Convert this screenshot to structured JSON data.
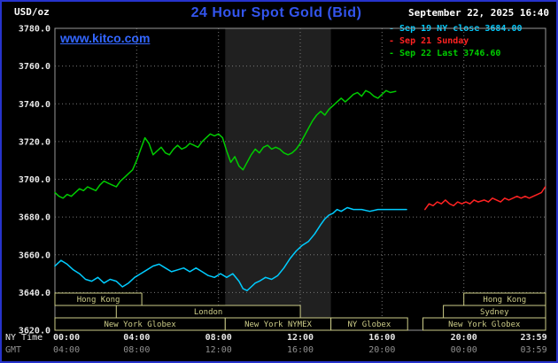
{
  "header": {
    "units": "USD/oz",
    "title": "24 Hour Spot Gold (Bid)",
    "datetime": "September 22, 2025 16:40",
    "site": "www.kitco.com"
  },
  "legend": [
    {
      "label": "- Sep 19 NY close 3684.00",
      "color": "#00ccff"
    },
    {
      "label": "- Sep 21 Sunday",
      "color": "#ff2222"
    },
    {
      "label": "- Sep 22 Last 3746.60",
      "color": "#00cc00"
    }
  ],
  "colors": {
    "border": "#2633cc",
    "grid": "#777777",
    "axis_border": "#999999",
    "band": "#202020",
    "session": "#cccc88",
    "ny_text": "#e8e8e8",
    "gmt_text": "#909090",
    "y_text": "#e8e8e8"
  },
  "axes": {
    "y_ticks": [
      {
        "v": 3780,
        "label": "3780.0"
      },
      {
        "v": 3760,
        "label": "3760.0"
      },
      {
        "v": 3740,
        "label": "3740.0"
      },
      {
        "v": 3720,
        "label": "3720.0"
      },
      {
        "v": 3700,
        "label": "3700.0"
      },
      {
        "v": 3680,
        "label": "3680.0"
      },
      {
        "v": 3660,
        "label": "3660.0"
      },
      {
        "v": 3640,
        "label": "3640.0"
      },
      {
        "v": 3620,
        "label": "3620.0"
      }
    ],
    "x_row_ny_label": "NY Time",
    "x_row_gmt_label": "GMT",
    "x_ticks": [
      {
        "h": 0,
        "ny": "00:00",
        "gmt": "04:00",
        "anchor": "start"
      },
      {
        "h": 4,
        "ny": "04:00",
        "gmt": "08:00",
        "anchor": "middle"
      },
      {
        "h": 8,
        "ny": "08:00",
        "gmt": "12:00",
        "anchor": "middle"
      },
      {
        "h": 12,
        "ny": "12:00",
        "gmt": "16:00",
        "anchor": "middle"
      },
      {
        "h": 16,
        "ny": "16:00",
        "gmt": "20:00",
        "anchor": "middle"
      },
      {
        "h": 20,
        "ny": "20:00",
        "gmt": "00:00",
        "anchor": "middle"
      },
      {
        "h": 23.983,
        "ny": "23:59",
        "gmt": "03:59",
        "anchor": "end"
      }
    ]
  },
  "sessions": [
    [
      {
        "label": "Hong Kong",
        "start": 0,
        "end": 4.25
      },
      {
        "label": "Hong Kong",
        "start": 20,
        "end": 24
      }
    ],
    [
      {
        "label": "London",
        "start": 3,
        "end": 12
      },
      {
        "label": "Sydney",
        "start": 19,
        "end": 24
      }
    ],
    [
      {
        "label": "New York Globex",
        "start": 0,
        "end": 8.33
      },
      {
        "label": "New York NYMEX",
        "start": 8.33,
        "end": 13.5
      },
      {
        "label": "NY Globex",
        "start": 13.5,
        "end": 17.25
      },
      {
        "label": "New York Globex",
        "start": 18,
        "end": 24
      }
    ]
  ],
  "chart_data": {
    "type": "line",
    "title": "24 Hour Spot Gold (Bid)",
    "ylabel": "USD/oz",
    "xlabel": "NY Time (hours 00:00-23:59)",
    "ylim": [
      3620,
      3780
    ],
    "xlim_hours": [
      0,
      24
    ],
    "grid": "dotted",
    "legend_position": "top-right",
    "shaded_band_hours": [
      8.33,
      13.5
    ],
    "series": [
      {
        "name": "Sep 19 NY close 3684.00",
        "color": "#00ccff",
        "points": [
          [
            0,
            3654
          ],
          [
            0.3,
            3657
          ],
          [
            0.6,
            3655
          ],
          [
            0.9,
            3652
          ],
          [
            1.2,
            3650
          ],
          [
            1.5,
            3647
          ],
          [
            1.8,
            3646
          ],
          [
            2.1,
            3648
          ],
          [
            2.4,
            3645
          ],
          [
            2.7,
            3647
          ],
          [
            3.0,
            3646
          ],
          [
            3.3,
            3643
          ],
          [
            3.6,
            3645
          ],
          [
            3.9,
            3648
          ],
          [
            4.2,
            3650
          ],
          [
            4.5,
            3652
          ],
          [
            4.8,
            3654
          ],
          [
            5.1,
            3655
          ],
          [
            5.4,
            3653
          ],
          [
            5.7,
            3651
          ],
          [
            6.0,
            3652
          ],
          [
            6.3,
            3653
          ],
          [
            6.6,
            3651
          ],
          [
            6.9,
            3653
          ],
          [
            7.2,
            3651
          ],
          [
            7.5,
            3649
          ],
          [
            7.8,
            3648
          ],
          [
            8.1,
            3650
          ],
          [
            8.4,
            3648
          ],
          [
            8.7,
            3650
          ],
          [
            9.0,
            3646
          ],
          [
            9.2,
            3642
          ],
          [
            9.4,
            3641
          ],
          [
            9.6,
            3643
          ],
          [
            9.8,
            3645
          ],
          [
            10.0,
            3646
          ],
          [
            10.3,
            3648
          ],
          [
            10.6,
            3647
          ],
          [
            10.9,
            3649
          ],
          [
            11.2,
            3653
          ],
          [
            11.5,
            3658
          ],
          [
            11.8,
            3662
          ],
          [
            12.1,
            3665
          ],
          [
            12.4,
            3667
          ],
          [
            12.7,
            3671
          ],
          [
            13.0,
            3676
          ],
          [
            13.2,
            3679
          ],
          [
            13.4,
            3681
          ],
          [
            13.6,
            3682
          ],
          [
            13.8,
            3684
          ],
          [
            14.0,
            3683
          ],
          [
            14.3,
            3685
          ],
          [
            14.6,
            3684
          ],
          [
            15.0,
            3684
          ],
          [
            15.4,
            3683
          ],
          [
            15.8,
            3684
          ],
          [
            16.2,
            3684
          ],
          [
            16.6,
            3684
          ],
          [
            17.0,
            3684
          ],
          [
            17.2,
            3684
          ]
        ]
      },
      {
        "name": "Sep 21 Sunday",
        "color": "#ff2222",
        "points": [
          [
            18.1,
            3684
          ],
          [
            18.3,
            3687
          ],
          [
            18.5,
            3686
          ],
          [
            18.7,
            3688
          ],
          [
            18.9,
            3687
          ],
          [
            19.1,
            3689
          ],
          [
            19.3,
            3687
          ],
          [
            19.5,
            3686
          ],
          [
            19.7,
            3688
          ],
          [
            19.9,
            3687
          ],
          [
            20.1,
            3688
          ],
          [
            20.3,
            3687
          ],
          [
            20.5,
            3689
          ],
          [
            20.7,
            3688
          ],
          [
            21.0,
            3689
          ],
          [
            21.2,
            3688
          ],
          [
            21.4,
            3690
          ],
          [
            21.6,
            3689
          ],
          [
            21.8,
            3688
          ],
          [
            22.0,
            3690
          ],
          [
            22.2,
            3689
          ],
          [
            22.4,
            3690
          ],
          [
            22.6,
            3691
          ],
          [
            22.8,
            3690
          ],
          [
            23.0,
            3691
          ],
          [
            23.2,
            3690
          ],
          [
            23.4,
            3691
          ],
          [
            23.6,
            3692
          ],
          [
            23.8,
            3693
          ],
          [
            23.983,
            3696
          ]
        ]
      },
      {
        "name": "Sep 22 Last 3746.60",
        "color": "#00cc00",
        "points": [
          [
            0,
            3693
          ],
          [
            0.2,
            3691
          ],
          [
            0.4,
            3690
          ],
          [
            0.6,
            3692
          ],
          [
            0.8,
            3691
          ],
          [
            1.0,
            3693
          ],
          [
            1.2,
            3695
          ],
          [
            1.4,
            3694
          ],
          [
            1.6,
            3696
          ],
          [
            1.8,
            3695
          ],
          [
            2.0,
            3694
          ],
          [
            2.2,
            3697
          ],
          [
            2.4,
            3699
          ],
          [
            2.6,
            3698
          ],
          [
            2.8,
            3697
          ],
          [
            3.0,
            3696
          ],
          [
            3.2,
            3699
          ],
          [
            3.4,
            3701
          ],
          [
            3.6,
            3703
          ],
          [
            3.8,
            3705
          ],
          [
            4.0,
            3710
          ],
          [
            4.2,
            3716
          ],
          [
            4.4,
            3722
          ],
          [
            4.6,
            3719
          ],
          [
            4.8,
            3713
          ],
          [
            5.0,
            3715
          ],
          [
            5.2,
            3717
          ],
          [
            5.4,
            3714
          ],
          [
            5.6,
            3713
          ],
          [
            5.8,
            3716
          ],
          [
            6.0,
            3718
          ],
          [
            6.2,
            3716
          ],
          [
            6.4,
            3717
          ],
          [
            6.6,
            3719
          ],
          [
            6.8,
            3718
          ],
          [
            7.0,
            3717
          ],
          [
            7.2,
            3720
          ],
          [
            7.4,
            3722
          ],
          [
            7.6,
            3724
          ],
          [
            7.8,
            3723
          ],
          [
            8.0,
            3724
          ],
          [
            8.2,
            3722
          ],
          [
            8.4,
            3715
          ],
          [
            8.6,
            3709
          ],
          [
            8.8,
            3712
          ],
          [
            9.0,
            3707
          ],
          [
            9.2,
            3705
          ],
          [
            9.4,
            3709
          ],
          [
            9.6,
            3713
          ],
          [
            9.8,
            3716
          ],
          [
            10.0,
            3714
          ],
          [
            10.2,
            3717
          ],
          [
            10.4,
            3718
          ],
          [
            10.6,
            3716
          ],
          [
            10.8,
            3717
          ],
          [
            11.0,
            3716
          ],
          [
            11.2,
            3714
          ],
          [
            11.4,
            3713
          ],
          [
            11.6,
            3714
          ],
          [
            11.8,
            3716
          ],
          [
            12.0,
            3719
          ],
          [
            12.2,
            3723
          ],
          [
            12.4,
            3727
          ],
          [
            12.6,
            3731
          ],
          [
            12.8,
            3734
          ],
          [
            13.0,
            3736
          ],
          [
            13.2,
            3734
          ],
          [
            13.4,
            3737
          ],
          [
            13.6,
            3739
          ],
          [
            13.8,
            3741
          ],
          [
            14.0,
            3743
          ],
          [
            14.2,
            3741
          ],
          [
            14.4,
            3743
          ],
          [
            14.6,
            3745
          ],
          [
            14.8,
            3746
          ],
          [
            15.0,
            3744
          ],
          [
            15.2,
            3747
          ],
          [
            15.4,
            3746
          ],
          [
            15.6,
            3744
          ],
          [
            15.8,
            3743
          ],
          [
            16.0,
            3745
          ],
          [
            16.2,
            3747
          ],
          [
            16.4,
            3746
          ],
          [
            16.67,
            3746.6
          ]
        ]
      }
    ]
  }
}
